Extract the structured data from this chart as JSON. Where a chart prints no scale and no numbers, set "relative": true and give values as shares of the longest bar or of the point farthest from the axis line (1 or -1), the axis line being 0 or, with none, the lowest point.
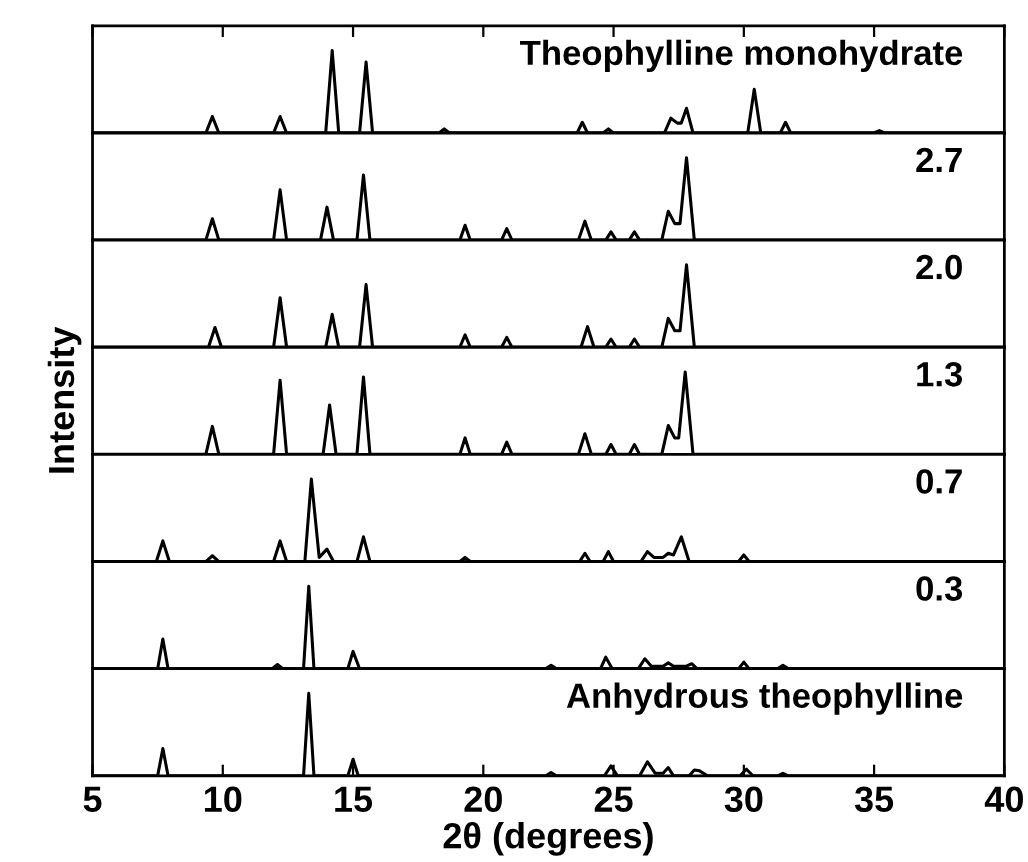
{
  "chart_data": [
    {
      "type": "line",
      "relative": true,
      "xlim": [
        5,
        40
      ],
      "xticks": [
        5,
        10,
        15,
        20,
        25,
        30,
        35,
        40
      ],
      "tick_labels": false,
      "annotations": [
        "Theophylline monohydrate"
      ],
      "series": [
        {
          "color": "#000000",
          "x": [
            5,
            9.35,
            9.6,
            9.85,
            11.95,
            12.2,
            12.45,
            13.95,
            14.2,
            14.45,
            15.25,
            15.5,
            15.75,
            18.3,
            18.5,
            18.7,
            23.6,
            23.8,
            24.0,
            24.6,
            24.8,
            25.0,
            26.95,
            27.2,
            27.45,
            27.6,
            27.8,
            28.05,
            30.15,
            30.4,
            30.65,
            31.4,
            31.6,
            31.8,
            35.0,
            35.2,
            35.4,
            40
          ],
          "values": [
            0,
            0,
            0.2,
            0,
            0,
            0.2,
            0,
            0,
            1.0,
            0,
            0,
            0.86,
            0,
            0,
            0.05,
            0,
            0,
            0.13,
            0,
            0,
            0.05,
            0,
            0,
            0.18,
            0.12,
            0.12,
            0.3,
            0,
            0,
            0.53,
            0,
            0,
            0.13,
            0,
            0,
            0.03,
            0,
            0
          ]
        }
      ]
    },
    {
      "type": "line",
      "relative": true,
      "xlim": [
        5,
        40
      ],
      "tick_labels": false,
      "annotations": [
        "2.7"
      ],
      "series": [
        {
          "color": "#000000",
          "x": [
            5,
            9.35,
            9.6,
            9.85,
            11.95,
            12.2,
            12.45,
            13.75,
            14.0,
            14.25,
            15.15,
            15.4,
            15.65,
            19.1,
            19.3,
            19.5,
            20.7,
            20.9,
            21.1,
            23.65,
            23.9,
            24.15,
            24.7,
            24.9,
            25.1,
            25.6,
            25.8,
            26.0,
            26.85,
            27.1,
            27.35,
            27.55,
            27.8,
            28.1,
            40
          ],
          "values": [
            0,
            0,
            0.26,
            0,
            0,
            0.61,
            0,
            0,
            0.4,
            0,
            0,
            0.79,
            0,
            0,
            0.18,
            0,
            0,
            0.14,
            0,
            0,
            0.23,
            0,
            0,
            0.1,
            0,
            0,
            0.1,
            0,
            0,
            0.35,
            0.2,
            0.2,
            1.0,
            0,
            0
          ]
        }
      ]
    },
    {
      "type": "line",
      "relative": true,
      "xlim": [
        5,
        40
      ],
      "tick_labels": false,
      "annotations": [
        "2.0"
      ],
      "series": [
        {
          "color": "#000000",
          "x": [
            5,
            9.45,
            9.7,
            9.95,
            11.95,
            12.2,
            12.45,
            13.95,
            14.2,
            14.45,
            15.25,
            15.5,
            15.75,
            19.1,
            19.3,
            19.5,
            20.7,
            20.9,
            21.1,
            23.75,
            24.0,
            24.25,
            24.7,
            24.9,
            25.1,
            25.6,
            25.8,
            26.0,
            26.85,
            27.1,
            27.35,
            27.55,
            27.8,
            28.1,
            40
          ],
          "values": [
            0,
            0,
            0.24,
            0,
            0,
            0.6,
            0,
            0,
            0.4,
            0,
            0,
            0.76,
            0,
            0,
            0.15,
            0,
            0,
            0.12,
            0,
            0,
            0.25,
            0,
            0,
            0.1,
            0,
            0,
            0.1,
            0,
            0,
            0.35,
            0.2,
            0.2,
            1.0,
            0,
            0
          ]
        }
      ]
    },
    {
      "type": "line",
      "relative": true,
      "xlim": [
        5,
        40
      ],
      "tick_labels": false,
      "ylabel": "Intensity",
      "annotations": [
        "1.3"
      ],
      "series": [
        {
          "color": "#000000",
          "x": [
            5,
            9.35,
            9.6,
            9.85,
            11.95,
            12.2,
            12.45,
            13.85,
            14.1,
            14.35,
            15.15,
            15.4,
            15.65,
            19.1,
            19.3,
            19.5,
            20.7,
            20.9,
            21.1,
            23.65,
            23.9,
            24.15,
            24.7,
            24.9,
            25.1,
            25.6,
            25.8,
            26.0,
            26.85,
            27.1,
            27.35,
            27.5,
            27.75,
            28.05,
            40
          ],
          "values": [
            0,
            0,
            0.34,
            0,
            0,
            0.9,
            0,
            0,
            0.6,
            0,
            0,
            0.94,
            0,
            0,
            0.2,
            0,
            0,
            0.15,
            0,
            0,
            0.25,
            0,
            0,
            0.12,
            0,
            0,
            0.12,
            0,
            0,
            0.35,
            0.2,
            0.2,
            1.0,
            0,
            0
          ]
        }
      ]
    },
    {
      "type": "line",
      "relative": true,
      "xlim": [
        5,
        40
      ],
      "tick_labels": false,
      "annotations": [
        "0.7"
      ],
      "series": [
        {
          "color": "#000000",
          "x": [
            5,
            7.45,
            7.7,
            7.95,
            9.35,
            9.6,
            9.85,
            11.95,
            12.2,
            12.45,
            13.15,
            13.4,
            13.7,
            14.0,
            14.25,
            15.15,
            15.4,
            15.65,
            19.1,
            19.3,
            19.5,
            23.7,
            23.9,
            24.1,
            24.6,
            24.8,
            25.0,
            26.05,
            26.3,
            26.55,
            26.9,
            27.1,
            27.3,
            27.6,
            27.9,
            29.8,
            30.0,
            30.2,
            40
          ],
          "values": [
            0,
            0,
            0.25,
            0,
            0,
            0.07,
            0,
            0,
            0.25,
            0,
            0,
            1.0,
            0.05,
            0.15,
            0,
            0,
            0.3,
            0,
            0,
            0.05,
            0,
            0,
            0.1,
            0,
            0,
            0.12,
            0,
            0,
            0.12,
            0.05,
            0.05,
            0.1,
            0.08,
            0.3,
            0,
            0,
            0.08,
            0,
            0
          ]
        }
      ]
    },
    {
      "type": "line",
      "relative": true,
      "xlim": [
        5,
        40
      ],
      "tick_labels": false,
      "annotations": [
        "0.3"
      ],
      "series": [
        {
          "color": "#000000",
          "x": [
            5,
            7.5,
            7.7,
            7.9,
            11.9,
            12.1,
            12.3,
            13.1,
            13.3,
            13.5,
            14.8,
            15.0,
            15.25,
            22.4,
            22.6,
            22.8,
            24.5,
            24.7,
            24.95,
            25.95,
            26.2,
            26.45,
            26.9,
            27.1,
            27.3,
            27.8,
            28.0,
            28.2,
            29.8,
            30.0,
            30.2,
            31.3,
            31.5,
            31.7,
            40
          ],
          "values": [
            0,
            0,
            0.36,
            0,
            0,
            0.05,
            0,
            0,
            1.0,
            0,
            0,
            0.21,
            0,
            0,
            0.04,
            0,
            0,
            0.14,
            0,
            0,
            0.12,
            0.03,
            0.03,
            0.07,
            0.03,
            0.03,
            0.06,
            0,
            0,
            0.08,
            0,
            0,
            0.04,
            0,
            0
          ]
        }
      ]
    },
    {
      "type": "line",
      "relative": true,
      "xlim": [
        5,
        40
      ],
      "xticks": [
        5,
        10,
        15,
        20,
        25,
        30,
        35,
        40
      ],
      "tick_labels": "x",
      "xlabel": "2θ (degrees)",
      "annotations": [
        "Anhydrous theophylline"
      ],
      "series": [
        {
          "color": "#000000",
          "x": [
            5,
            7.5,
            7.7,
            7.9,
            13.1,
            13.3,
            13.5,
            14.8,
            15.0,
            15.2,
            22.4,
            22.6,
            22.8,
            24.65,
            24.9,
            25.15,
            26.0,
            26.3,
            26.6,
            26.9,
            27.1,
            27.3,
            27.9,
            28.1,
            28.3,
            28.6,
            28.8,
            29.85,
            30.1,
            30.35,
            31.3,
            31.5,
            31.7,
            40
          ],
          "values": [
            0,
            0,
            0.33,
            0,
            0,
            1.0,
            0,
            0,
            0.2,
            0,
            0,
            0.04,
            0,
            0,
            0.12,
            0,
            0,
            0.17,
            0.03,
            0.03,
            0.1,
            0,
            0,
            0.07,
            0.06,
            0,
            0,
            0,
            0.08,
            0,
            0,
            0.03,
            0,
            0
          ]
        }
      ]
    }
  ]
}
